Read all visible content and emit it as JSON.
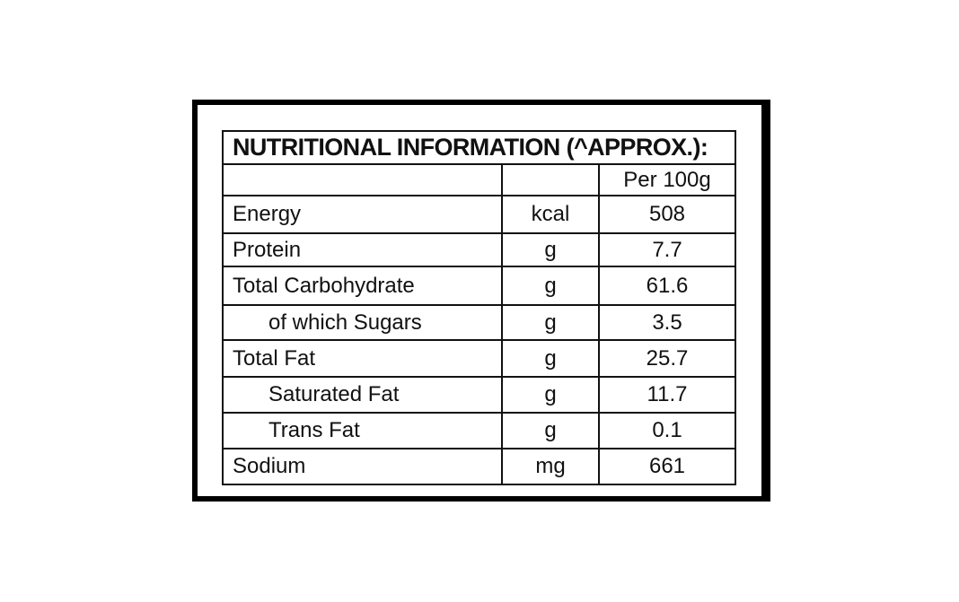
{
  "table": {
    "title": "NUTRITIONAL INFORMATION (^APPROX.):",
    "header": "Per 100g",
    "rows": [
      [
        "Energy",
        "kcal",
        508
      ],
      [
        "Protein",
        "g",
        7.7
      ],
      [
        "Total Carbohydrate",
        "g",
        61.6
      ],
      [
        "of which Sugars",
        "g",
        3.5
      ],
      [
        "Total Fat",
        "g",
        25.7
      ],
      [
        "Saturated Fat",
        "g",
        11.7
      ],
      [
        "Trans Fat",
        "g",
        0.1
      ],
      [
        "Sodium",
        "mg",
        661
      ]
    ]
  }
}
